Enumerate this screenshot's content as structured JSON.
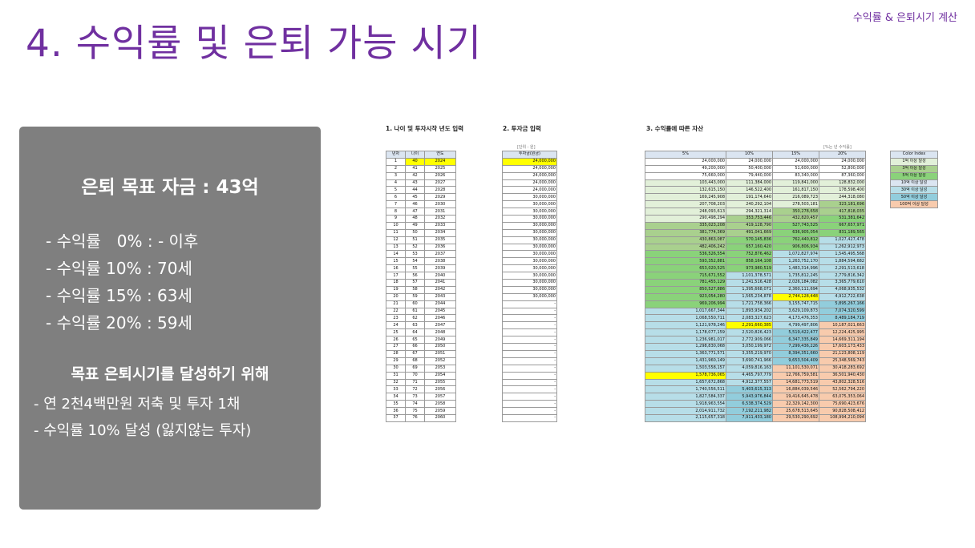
{
  "header": {
    "corner_label": "수익률 & 은퇴시기 계산",
    "title": "4. 수익률 및 은퇴 가능 시기"
  },
  "panel": {
    "goal": "은퇴 목표 자금 : 43억",
    "rates": [
      "- 수익률　0% : - 이후",
      "- 수익률 10% : 70세",
      "- 수익률 15% : 63세",
      "- 수익률 20% : 59세"
    ],
    "subtitle": "목표 은퇴시기를 달성하기 위해",
    "steps": [
      "- 연 2천4백만원 저축 및 투자 1채",
      "- 수익률 10% 달성 (잃지않는 투자)"
    ]
  },
  "sheet": {
    "section1_title": "1. 나이 및 투자시작 년도 입력",
    "section2_title": "2. 투자금 입력",
    "section3_title": "3. 수익률에 따른 자산",
    "unit_note": "[단위 : 원]",
    "rate_note": "[%는 년 수익률]",
    "headers1": [
      "년차",
      "나이",
      "연도"
    ],
    "header2": "투자금(원금)",
    "headers3": [
      "5%",
      "10%",
      "15%",
      "20%"
    ],
    "legend_title": "Color Index",
    "legend": [
      "1억 이상 달성",
      "3억 이상 달성",
      "5억 이상 달성",
      "10억 이상 달성",
      "30억 이상 달성",
      "50억 이상 달성",
      "100억 이상 달성"
    ],
    "legend_colors": [
      "#e2f0d9",
      "#a9d08e",
      "#8ad27a",
      "#dbe5f1",
      "#b7dee8",
      "#92cddc",
      "#f8cbad"
    ],
    "rows": [
      [
        1,
        40,
        2024,
        "24,000,000",
        "24,000,000",
        "24,000,000",
        "24,000,000",
        "24,000,000"
      ],
      [
        2,
        41,
        2025,
        "24,000,000",
        "49,200,000",
        "50,400,000",
        "51,600,000",
        "52,800,000"
      ],
      [
        3,
        42,
        2026,
        "24,000,000",
        "75,660,000",
        "79,440,000",
        "83,340,000",
        "87,360,000"
      ],
      [
        4,
        43,
        2027,
        "24,000,000",
        "103,443,000",
        "111,384,000",
        "119,841,000",
        "128,832,000"
      ],
      [
        5,
        44,
        2028,
        "24,000,000",
        "132,615,150",
        "146,522,400",
        "161,817,150",
        "178,598,400"
      ],
      [
        6,
        45,
        2029,
        "30,000,000",
        "169,245,908",
        "191,174,640",
        "216,089,723",
        "244,318,080"
      ],
      [
        7,
        46,
        2030,
        "30,000,000",
        "207,708,203",
        "240,292,104",
        "278,503,181",
        "323,181,696"
      ],
      [
        8,
        47,
        2031,
        "30,000,000",
        "248,093,613",
        "294,321,314",
        "350,278,658",
        "417,818,035"
      ],
      [
        9,
        48,
        2032,
        "30,000,000",
        "290,498,294",
        "353,753,446",
        "432,820,457",
        "531,381,642"
      ],
      [
        10,
        49,
        2033,
        "30,000,000",
        "335,023,208",
        "419,128,790",
        "527,743,525",
        "667,657,971"
      ],
      [
        11,
        50,
        2034,
        "30,000,000",
        "381,774,369",
        "491,041,669",
        "636,905,054",
        "831,189,565"
      ],
      [
        12,
        51,
        2035,
        "30,000,000",
        "430,863,087",
        "570,145,836",
        "762,440,812",
        "1,027,427,478"
      ],
      [
        13,
        52,
        2036,
        "30,000,000",
        "482,406,242",
        "657,160,420",
        "906,806,934",
        "1,262,912,973"
      ],
      [
        14,
        53,
        2037,
        "30,000,000",
        "536,526,554",
        "752,876,462",
        "1,072,827,974",
        "1,545,495,568"
      ],
      [
        15,
        54,
        2038,
        "30,000,000",
        "593,352,881",
        "858,164,108",
        "1,263,752,170",
        "1,884,594,682"
      ],
      [
        16,
        55,
        2039,
        "30,000,000",
        "653,020,525",
        "973,980,519",
        "1,483,314,996",
        "2,291,513,618"
      ],
      [
        17,
        56,
        2040,
        "30,000,000",
        "715,671,552",
        "1,101,378,571",
        "1,735,812,245",
        "2,779,816,342"
      ],
      [
        18,
        57,
        2041,
        "30,000,000",
        "781,455,129",
        "1,241,516,428",
        "2,026,184,082",
        "3,365,779,610"
      ],
      [
        19,
        58,
        2042,
        "30,000,000",
        "850,527,886",
        "1,395,668,071",
        "2,360,111,694",
        "4,068,935,532"
      ],
      [
        20,
        59,
        2043,
        "30,000,000",
        "923,054,280",
        "1,565,234,878",
        "2,744,128,448",
        "4,912,722,638"
      ],
      [
        21,
        60,
        2044,
        "-",
        "969,206,994",
        "1,721,758,366",
        "3,155,747,715",
        "5,895,267,166"
      ],
      [
        22,
        61,
        2045,
        "-",
        "1,017,667,344",
        "1,893,934,202",
        "3,629,109,873",
        "7,074,320,599"
      ],
      [
        23,
        62,
        2046,
        "-",
        "1,068,550,711",
        "2,083,327,623",
        "4,173,476,353",
        "8,489,184,719"
      ],
      [
        24,
        63,
        2047,
        "-",
        "1,121,978,246",
        "2,291,660,385",
        "4,799,497,806",
        "10,187,021,663"
      ],
      [
        25,
        64,
        2048,
        "-",
        "1,178,077,159",
        "2,520,826,423",
        "5,519,422,477",
        "12,224,425,995"
      ],
      [
        26,
        65,
        2049,
        "-",
        "1,236,981,017",
        "2,772,909,066",
        "6,347,335,849",
        "14,669,311,194"
      ],
      [
        27,
        66,
        2050,
        "-",
        "1,298,830,068",
        "3,050,199,972",
        "7,299,436,226",
        "17,603,173,433"
      ],
      [
        28,
        67,
        2051,
        "-",
        "1,363,771,571",
        "3,355,219,970",
        "8,394,351,660",
        "21,123,808,119"
      ],
      [
        29,
        68,
        2052,
        "-",
        "1,431,960,149",
        "3,690,741,966",
        "9,653,504,409",
        "25,348,569,743"
      ],
      [
        30,
        69,
        2053,
        "-",
        "1,503,558,157",
        "4,059,816,163",
        "11,101,530,071",
        "30,418,283,692"
      ],
      [
        31,
        70,
        2054,
        "-",
        "1,578,736,065",
        "4,465,797,779",
        "12,766,759,581",
        "36,501,940,430"
      ],
      [
        32,
        71,
        2055,
        "-",
        "1,657,672,868",
        "4,912,377,557",
        "14,681,773,519",
        "43,802,328,516"
      ],
      [
        33,
        72,
        2056,
        "-",
        "1,740,556,511",
        "5,403,615,313",
        "16,884,039,546",
        "52,562,794,220"
      ],
      [
        34,
        73,
        2057,
        "-",
        "1,827,584,337",
        "5,943,976,844",
        "19,416,645,478",
        "63,075,353,064"
      ],
      [
        35,
        74,
        2058,
        "-",
        "1,918,963,554",
        "6,538,374,529",
        "22,329,142,300",
        "75,690,423,676"
      ],
      [
        36,
        75,
        2059,
        "-",
        "2,014,911,732",
        "7,192,211,982",
        "25,678,513,645",
        "90,828,508,412"
      ],
      [
        37,
        76,
        2060,
        "-",
        "2,115,657,318",
        "7,911,433,180",
        "29,530,290,692",
        "108,994,210,094"
      ]
    ]
  }
}
